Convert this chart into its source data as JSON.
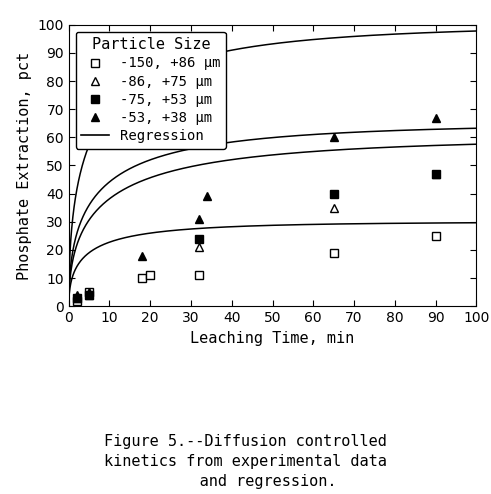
{
  "title": "",
  "xlabel": "Leaching Time, min",
  "ylabel": "Phosphate Extraction, pct",
  "xlim": [
    0,
    100
  ],
  "ylim": [
    0,
    100
  ],
  "xticks": [
    0,
    10,
    20,
    30,
    40,
    50,
    60,
    70,
    80,
    90,
    100
  ],
  "yticks": [
    0,
    10,
    20,
    30,
    40,
    50,
    60,
    70,
    80,
    90,
    100
  ],
  "legend_title": "Particle Size",
  "series": [
    {
      "label": "-150, +86 μm",
      "marker": "s",
      "filled": false,
      "data_x": [
        2,
        5,
        18,
        20,
        32,
        65,
        90
      ],
      "data_y": [
        2,
        5,
        10,
        11,
        11,
        19,
        25
      ],
      "reg_A": 30.0,
      "reg_k": 0.045
    },
    {
      "label": "-86, +75 μm",
      "marker": "^",
      "filled": false,
      "data_x": [
        2,
        5,
        32,
        65,
        90
      ],
      "data_y": [
        3,
        4,
        21,
        35,
        47
      ],
      "reg_A": 60.0,
      "reg_k": 0.032
    },
    {
      "label": "-75, +53 μm",
      "marker": "s",
      "filled": true,
      "data_x": [
        2,
        5,
        32,
        65,
        90
      ],
      "data_y": [
        3,
        4,
        24,
        40,
        47
      ],
      "reg_A": 65.0,
      "reg_k": 0.036
    },
    {
      "label": "-53, +38 μm",
      "marker": "^",
      "filled": true,
      "data_x": [
        2,
        5,
        18,
        32,
        34,
        65,
        90
      ],
      "data_y": [
        4,
        5,
        18,
        31,
        39,
        60,
        67
      ],
      "reg_A": 100.0,
      "reg_k": 0.038
    }
  ],
  "background_color": "#ffffff",
  "line_color": "#000000",
  "text_color": "#000000",
  "font_family": "DejaVu Sans Mono",
  "axis_fontsize": 10,
  "label_fontsize": 11,
  "legend_fontsize": 10,
  "caption_fontsize": 11,
  "caption_lines": [
    "Figure 5.--Diffusion controlled",
    "kinetics from experimental data",
    "     and regression."
  ]
}
